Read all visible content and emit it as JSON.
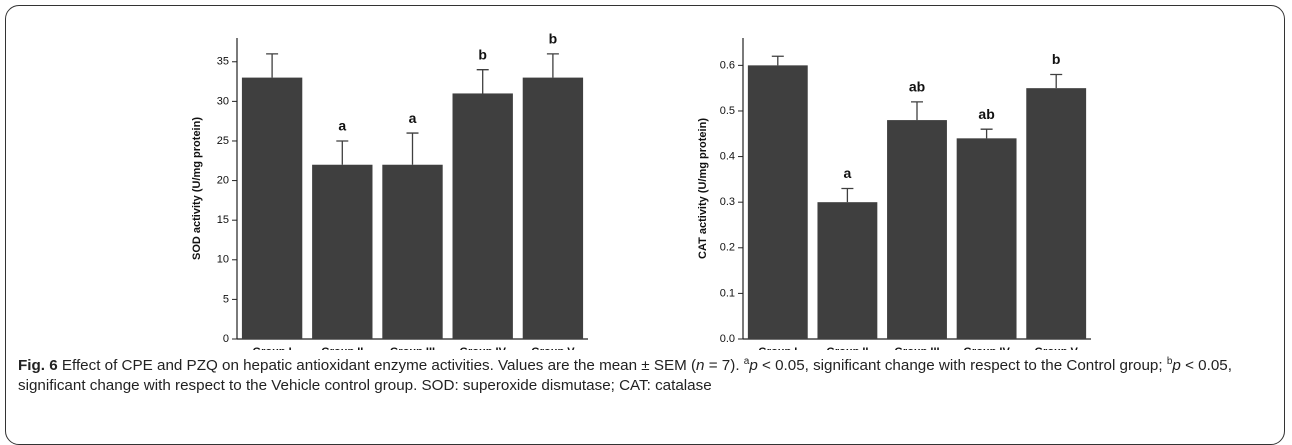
{
  "chart_data": [
    {
      "type": "bar",
      "y_label": "SOD activity (U/mg protein)",
      "categories": [
        "Group I",
        "Group II",
        "Group III",
        "Group IV",
        "Group V"
      ],
      "values": [
        33,
        22,
        22,
        31,
        33
      ],
      "errors": [
        3,
        3,
        4,
        3,
        3
      ],
      "significance": [
        null,
        "a",
        "a",
        "b",
        "b"
      ],
      "color": "#3f3f3f",
      "ylim": [
        0,
        38
      ],
      "yticks": [
        0,
        5,
        10,
        15,
        20,
        25,
        30,
        35
      ]
    },
    {
      "type": "bar",
      "y_label": "CAT activity (U/mg protein)",
      "categories": [
        "Group I",
        "Group II",
        "Group III",
        "Group IV",
        "Group V"
      ],
      "values": [
        0.6,
        0.3,
        0.48,
        0.44,
        0.55
      ],
      "errors": [
        0.02,
        0.03,
        0.04,
        0.02,
        0.03
      ],
      "significance": [
        null,
        "a",
        "ab",
        "ab",
        "b"
      ],
      "color": "#3f3f3f",
      "ylim": [
        0,
        0.66
      ],
      "yticks": [
        {
          "value": 0,
          "label": "0.0"
        },
        0.1,
        0.2,
        0.3,
        0.4,
        0.5,
        0.6
      ]
    }
  ],
  "caption": [
    {
      "text": "Fig. 6",
      "style": "bold"
    },
    {
      "text": " Effect of CPE and PZQ on hepatic antioxidant enzyme activities. Values are the mean ± SEM (",
      "style": "normal"
    },
    {
      "text": "n",
      "style": "italic"
    },
    {
      "text": " = 7). ",
      "style": "normal"
    },
    {
      "text": "a",
      "style": "sup"
    },
    {
      "text": "p",
      "style": "italic"
    },
    {
      "text": " < 0.05, significant change with respect to the Control group; ",
      "style": "normal"
    },
    {
      "text": "b",
      "style": "sup"
    },
    {
      "text": "p",
      "style": "italic"
    },
    {
      "text": " < 0.05, significant change with respect to the Vehicle control group. SOD: superoxide dismutase; CAT: catalase",
      "style": "normal"
    }
  ]
}
